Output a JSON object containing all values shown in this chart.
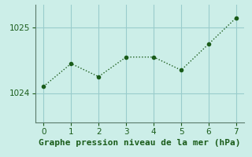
{
  "x": [
    0,
    1,
    2,
    3,
    4,
    5,
    6,
    7
  ],
  "y": [
    1024.1,
    1024.45,
    1024.25,
    1024.55,
    1024.55,
    1024.35,
    1024.75,
    1025.15
  ],
  "line_color": "#1a5c1a",
  "marker": "o",
  "marker_size": 3,
  "bg_color": "#cceee8",
  "grid_color": "#99cccc",
  "xlabel": "Graphe pression niveau de la mer (hPa)",
  "xlabel_fontsize": 8,
  "yticks": [
    1024,
    1025
  ],
  "ylim": [
    1023.55,
    1025.35
  ],
  "xlim": [
    -0.3,
    7.3
  ],
  "xticks": [
    0,
    1,
    2,
    3,
    4,
    5,
    6,
    7
  ],
  "tick_fontsize": 7.5,
  "linewidth": 1.0,
  "linestyle": ":"
}
